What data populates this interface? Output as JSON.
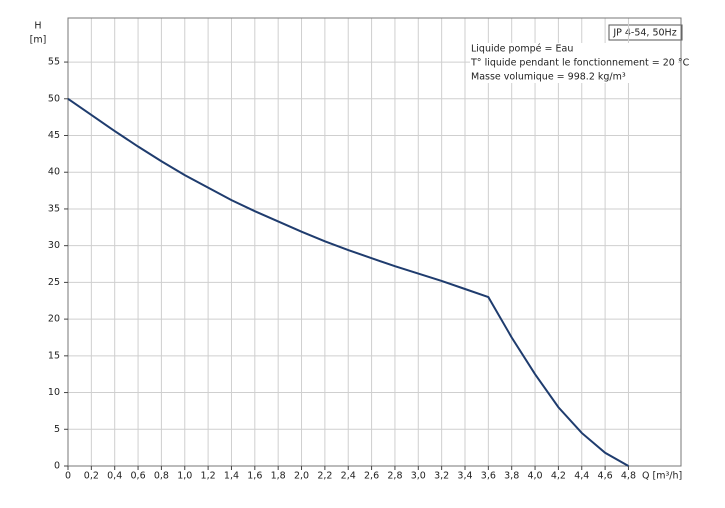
{
  "chart_data": {
    "type": "line",
    "ylabel": "H",
    "yunit": "[m]",
    "xlabel": "Q [m³/h]",
    "badge": "JP 4-54, 50Hz",
    "notes": [
      "Liquide pompé = Eau",
      "T° liquide pendant le fonctionnement = 20 °C",
      "Masse volumique = 998.2 kg/m³"
    ],
    "x": [
      0,
      0.2,
      0.4,
      0.6,
      0.8,
      1.0,
      1.2,
      1.4,
      1.6,
      1.8,
      2.0,
      2.2,
      2.4,
      2.6,
      2.8,
      3.0,
      3.2,
      3.4,
      3.6,
      3.8,
      4.0,
      4.2,
      4.4,
      4.6,
      4.8
    ],
    "values": [
      50,
      47.8,
      45.6,
      43.5,
      41.5,
      39.6,
      37.9,
      36.2,
      34.7,
      33.3,
      31.9,
      30.6,
      29.4,
      28.3,
      27.2,
      26.2,
      25.2,
      24.1,
      23,
      17.5,
      12.5,
      8,
      4.5,
      1.8,
      0
    ],
    "color": "#1f3c6e",
    "xlim": [
      0,
      5.25
    ],
    "ylim": [
      0,
      61
    ],
    "xticks": [
      0,
      {
        "value": 0.2,
        "label": "0,2"
      },
      {
        "value": 0.4,
        "label": "0,4"
      },
      {
        "value": 0.6,
        "label": "0,6"
      },
      {
        "value": 0.8,
        "label": "0,8"
      },
      {
        "value": 1.0,
        "label": "1,0"
      },
      {
        "value": 1.2,
        "label": "1,2"
      },
      {
        "value": 1.4,
        "label": "1,4"
      },
      {
        "value": 1.6,
        "label": "1,6"
      },
      {
        "value": 1.8,
        "label": "1,8"
      },
      {
        "value": 2.0,
        "label": "2,0"
      },
      {
        "value": 2.2,
        "label": "2,2"
      },
      {
        "value": 2.4,
        "label": "2,4"
      },
      {
        "value": 2.6,
        "label": "2,6"
      },
      {
        "value": 2.8,
        "label": "2,8"
      },
      {
        "value": 3.0,
        "label": "3,0"
      },
      {
        "value": 3.2,
        "label": "3,2"
      },
      {
        "value": 3.4,
        "label": "3,4"
      },
      {
        "value": 3.6,
        "label": "3,6"
      },
      {
        "value": 3.8,
        "label": "3,8"
      },
      {
        "value": 4.0,
        "label": "4,0"
      },
      {
        "value": 4.2,
        "label": "4,2"
      },
      {
        "value": 4.4,
        "label": "4,4"
      },
      {
        "value": 4.6,
        "label": "4,6"
      },
      {
        "value": 4.8,
        "label": "4,8"
      }
    ],
    "yticks": [
      0,
      5,
      10,
      15,
      20,
      25,
      30,
      35,
      40,
      45,
      50,
      55
    ],
    "grid": true
  }
}
